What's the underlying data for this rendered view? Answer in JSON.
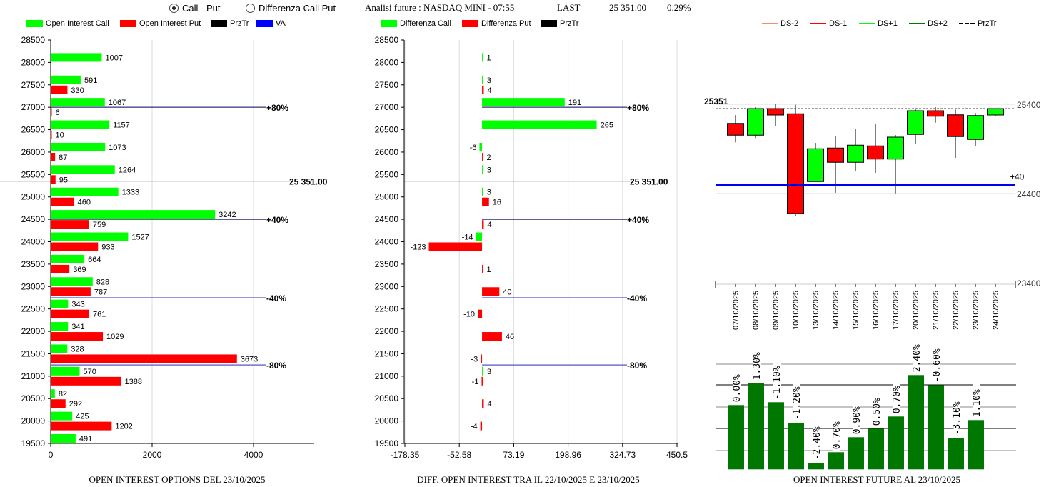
{
  "header": {
    "radio_options": [
      {
        "label": "Call - Put",
        "selected": true
      },
      {
        "label": "Differenza Call Put",
        "selected": false
      }
    ],
    "analysis_label": "Analisi future : NASDAQ MINI - 07:55",
    "last_label": "LAST",
    "last_value": "25 351.00",
    "change": "0.29%"
  },
  "legends": {
    "left": [
      {
        "label": "Open Interest Call",
        "color": "#00ff00"
      },
      {
        "label": "Open Interest Put",
        "color": "#ff0000"
      },
      {
        "label": "PrzTr",
        "color": "#000000"
      },
      {
        "label": "VA",
        "color": "#0000ff"
      }
    ],
    "middle": [
      {
        "label": "Differenza Call",
        "color": "#00ff00"
      },
      {
        "label": "Differenza Put",
        "color": "#ff0000"
      },
      {
        "label": "PrzTr",
        "color": "#000000"
      }
    ],
    "right": [
      {
        "label": "DS-2",
        "color": "#ff8c69"
      },
      {
        "label": "DS-1",
        "color": "#ff0000"
      },
      {
        "label": "DS+1",
        "color": "#00ff00"
      },
      {
        "label": "DS+2",
        "color": "#007700"
      },
      {
        "label": "PrzTr",
        "color": "#000000",
        "dashed": true
      }
    ]
  },
  "chart_data": [
    {
      "type": "bar",
      "orientation": "horizontal",
      "title": "OPEN INTEREST OPTIONS DEL 23/10/2025",
      "strikes": [
        28000,
        27500,
        27000,
        26500,
        26000,
        25500,
        25000,
        24500,
        24000,
        23500,
        23000,
        22500,
        22000,
        21500,
        21000,
        20500,
        20000,
        19500
      ],
      "y_ticks": [
        "28500",
        "28000",
        "27500",
        "27000",
        "26500",
        "26000",
        "25500",
        "25000",
        "24500",
        "24000",
        "23500",
        "23000",
        "22500",
        "22000",
        "21500",
        "21000",
        "20500",
        "20000",
        "19500"
      ],
      "x_ticks": [
        "0",
        "2000",
        "4000"
      ],
      "xlim": [
        0,
        6000
      ],
      "ylim": [
        19500,
        28500
      ],
      "series": [
        {
          "name": "Open Interest Call",
          "values": [
            1007,
            591,
            1067,
            1157,
            1073,
            1264,
            1333,
            3242,
            1527,
            664,
            828,
            343,
            341,
            328,
            570,
            82,
            425,
            491
          ]
        },
        {
          "name": "Open Interest Put",
          "values": [
            null,
            330,
            6,
            10,
            87,
            95,
            460,
            759,
            933,
            369,
            787,
            761,
            1029,
            3673,
            1388,
            292,
            1202,
            null
          ]
        }
      ],
      "levels": [
        {
          "label": "+80%",
          "value": 27000
        },
        {
          "label": "25 351.00",
          "value": 25351,
          "type": "price"
        },
        {
          "label": "+40%",
          "value": 24500
        },
        {
          "label": "-40%",
          "value": 22750
        },
        {
          "label": "-80%",
          "value": 21250
        }
      ]
    },
    {
      "type": "bar",
      "orientation": "horizontal",
      "title": "DIFF. OPEN INTEREST TRA IL 22/10/2025 E 23/10/2025",
      "strikes": [
        28000,
        27500,
        27000,
        26500,
        26000,
        25500,
        25000,
        24500,
        24000,
        23500,
        23000,
        22500,
        22000,
        21500,
        21000,
        20500,
        20000
      ],
      "y_ticks": [
        "28500",
        "28000",
        "27500",
        "27000",
        "26500",
        "26000",
        "25500",
        "25000",
        "24500",
        "24000",
        "23500",
        "23000",
        "22500",
        "22000",
        "21500",
        "21000",
        "20500",
        "20000",
        "19500"
      ],
      "x_ticks": [
        "-178.35",
        "-52.58",
        "73.19",
        "198.96",
        "324.73",
        "450.5"
      ],
      "xlim": [
        -178.35,
        450.5
      ],
      "ylim": [
        19500,
        28500
      ],
      "series": [
        {
          "name": "Differenza Call",
          "values": [
            1,
            3,
            191,
            265,
            -6,
            3,
            3,
            null,
            -14,
            null,
            null,
            null,
            null,
            null,
            3,
            null,
            null
          ]
        },
        {
          "name": "Differenza Put",
          "values": [
            null,
            4,
            null,
            null,
            2,
            null,
            16,
            4,
            -123,
            1,
            40,
            -10,
            46,
            -3,
            -1,
            4,
            -4
          ]
        }
      ],
      "levels": [
        {
          "label": "+80%",
          "value": 27000
        },
        {
          "label": "25 351.00",
          "value": 25351,
          "type": "price"
        },
        {
          "label": "+40%",
          "value": 24500
        },
        {
          "label": "-40%",
          "value": 22750
        },
        {
          "label": "-80%",
          "value": 21250
        }
      ]
    },
    {
      "type": "candlestick",
      "dates": [
        "07/10/2025",
        "08/10/2025",
        "09/10/2025",
        "10/10/2025",
        "13/10/2025",
        "14/10/2025",
        "15/10/2025",
        "16/10/2025",
        "17/10/2025",
        "20/10/2025",
        "21/10/2025",
        "22/10/2025",
        "23/10/2025",
        "24/10/2025"
      ],
      "ohlc": [
        [
          25186,
          25280,
          24974,
          25054
        ],
        [
          25054,
          25368,
          25022,
          25352
        ],
        [
          25352,
          25400,
          25154,
          25280
        ],
        [
          25294,
          25395,
          24146,
          24176
        ],
        [
          24534,
          24968,
          24534,
          24902
        ],
        [
          24910,
          25042,
          24408,
          24750
        ],
        [
          24750,
          25120,
          24656,
          24942
        ],
        [
          24934,
          25182,
          24632,
          24786
        ],
        [
          24786,
          25056,
          24402,
          25032
        ],
        [
          25062,
          25350,
          24952,
          25328
        ],
        [
          25328,
          25368,
          25194,
          25266
        ],
        [
          25282,
          25342,
          24800,
          25038
        ],
        [
          25006,
          25302,
          24928,
          25274
        ],
        [
          25280,
          25352,
          25266,
          25352
        ]
      ],
      "y_ticks": [
        "25400",
        "24400",
        "23400"
      ],
      "ylim": [
        23400,
        25450
      ],
      "price_line": {
        "label": "25351",
        "value": 25351
      },
      "level_line": {
        "label": "+40",
        "value": 24494
      }
    },
    {
      "type": "bar",
      "title": "OPEN INTEREST FUTURE AL 23/10/2025",
      "labels": [
        "0.00%",
        "1.30%",
        "-1.10%",
        "-1.20%",
        "-2.40%",
        "0.70%",
        "0.90%",
        "0.50%",
        "0.70%",
        "2.40%",
        "-0.60%",
        "-3.10%",
        "1.10%"
      ],
      "values_relative": [
        90,
        121,
        94,
        65,
        9,
        24,
        45,
        57,
        74,
        132,
        118,
        44,
        69
      ],
      "ylim": [
        0,
        150
      ]
    }
  ]
}
